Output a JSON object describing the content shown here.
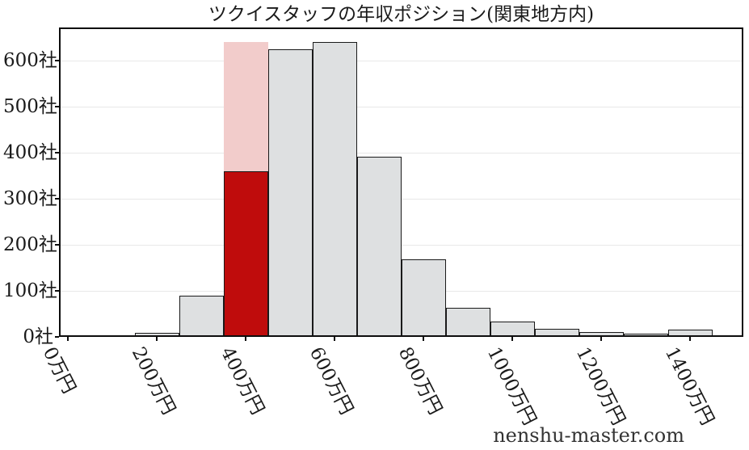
{
  "watermark": "nenshu-master.com",
  "chart_data": {
    "type": "bar",
    "title": "ツクイスタッフの年収ポジション(関東地方内)",
    "x_unit": "万円",
    "y_unit": "社",
    "bin_width": 100,
    "bin_centers": [
      100,
      200,
      300,
      400,
      500,
      600,
      700,
      800,
      900,
      1000,
      1100,
      1200,
      1300,
      1400
    ],
    "values": [
      2,
      9,
      90,
      360,
      624,
      640,
      392,
      168,
      63,
      33,
      17,
      10,
      7,
      16
    ],
    "highlight_index": 3,
    "highlight_value": 360,
    "highlight_band_value": 640,
    "x_ticks": [
      0,
      200,
      400,
      600,
      800,
      1000,
      1200,
      1400
    ],
    "x_tick_labels": [
      "0万円",
      "200万円",
      "400万円",
      "600万円",
      "800万円",
      "1000万円",
      "1200万円",
      "1400万円"
    ],
    "y_ticks": [
      0,
      100,
      200,
      300,
      400,
      500,
      600
    ],
    "y_tick_labels": [
      "0社",
      "100社",
      "200社",
      "300社",
      "400社",
      "500社",
      "600社"
    ],
    "xlim": [
      -20,
      1520
    ],
    "ylim": [
      0,
      672
    ],
    "grid": true,
    "legend": null,
    "colors": {
      "bar_fill": "#dee0e1",
      "bar_edge": "#1a1a1a",
      "highlight_fill": "#bf0c0c",
      "highlight_band": "#f2cccb",
      "grid_line": "#e8e8e8",
      "axis": "#0d0d0d",
      "text": "#1a1a1a",
      "watermark": "#333333"
    }
  }
}
